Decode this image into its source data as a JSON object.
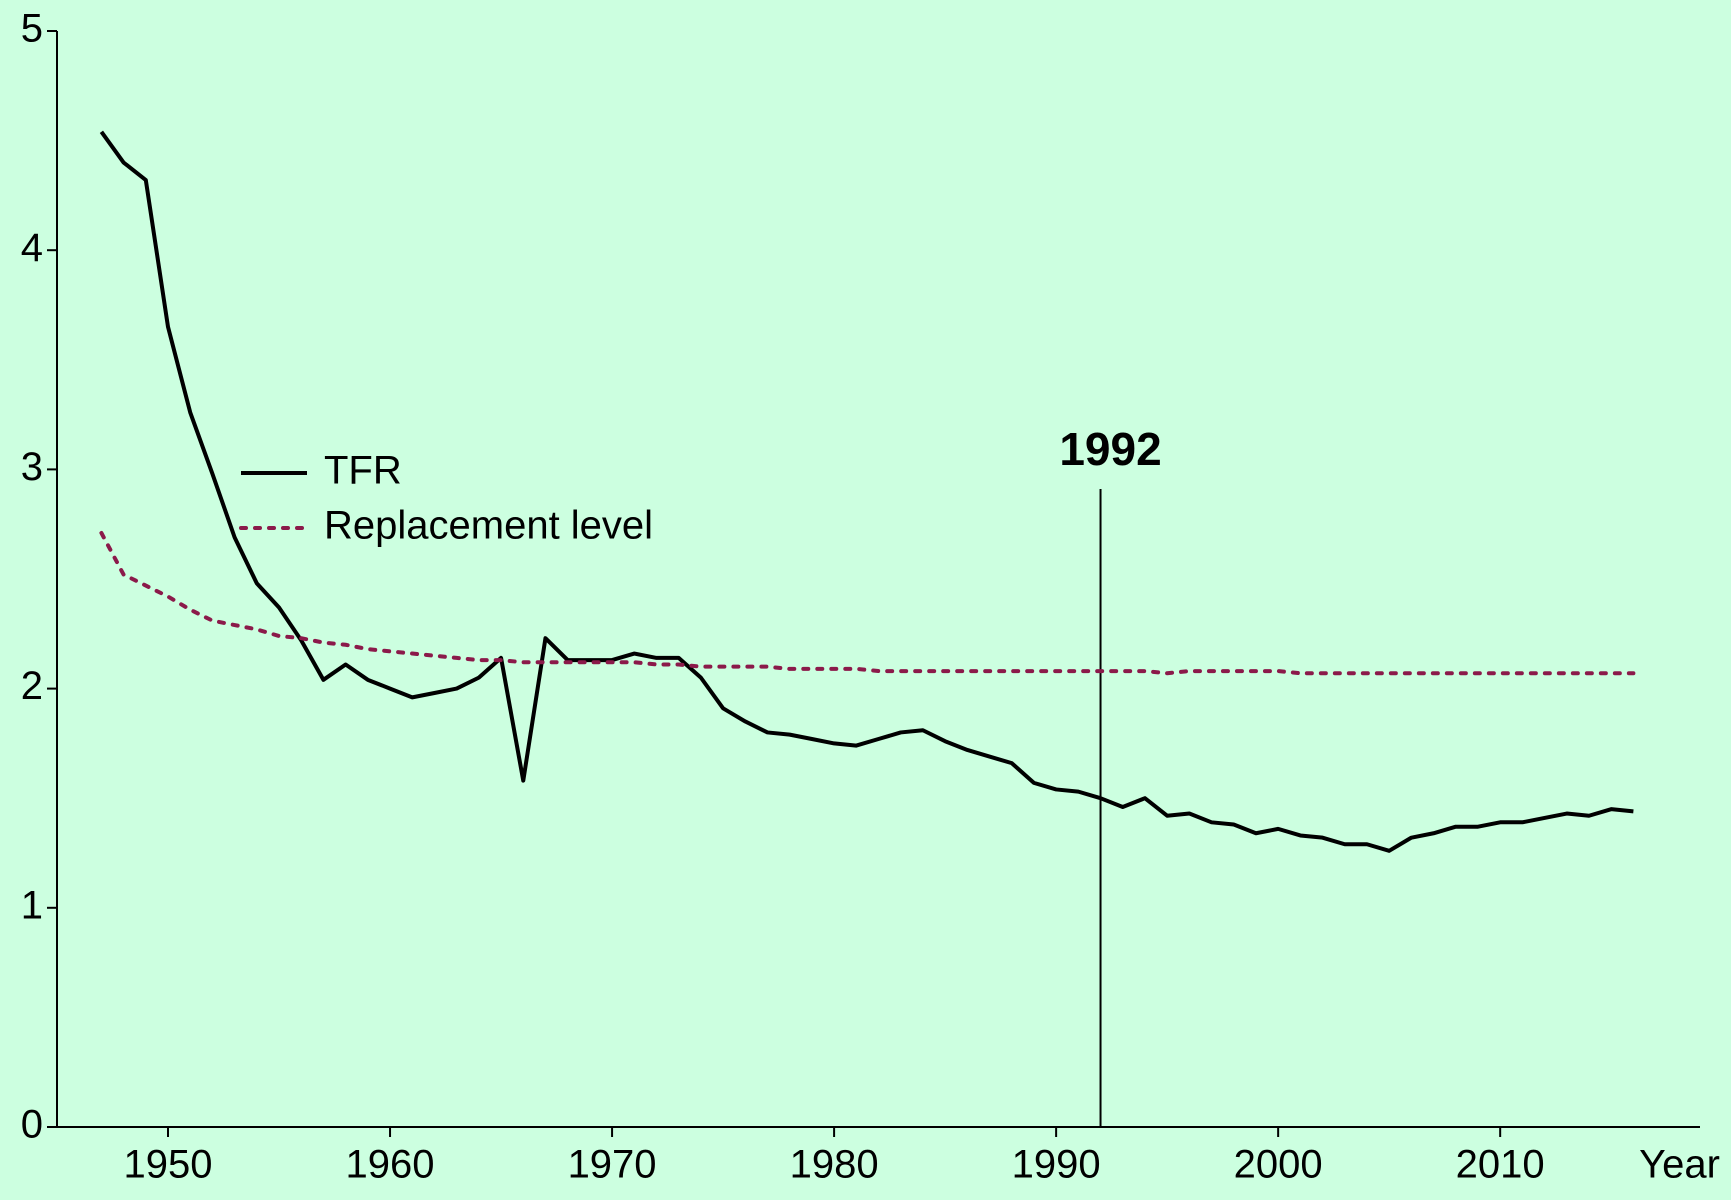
{
  "chart_data": {
    "type": "line",
    "x_label": "Year",
    "x": [
      1947,
      1948,
      1949,
      1950,
      1951,
      1952,
      1953,
      1954,
      1955,
      1956,
      1957,
      1958,
      1959,
      1960,
      1961,
      1962,
      1963,
      1964,
      1965,
      1966,
      1967,
      1968,
      1969,
      1970,
      1971,
      1972,
      1973,
      1974,
      1975,
      1976,
      1977,
      1978,
      1979,
      1980,
      1981,
      1982,
      1983,
      1984,
      1985,
      1986,
      1987,
      1988,
      1989,
      1990,
      1991,
      1992,
      1993,
      1994,
      1995,
      1996,
      1997,
      1998,
      1999,
      2000,
      2001,
      2002,
      2003,
      2004,
      2005,
      2006,
      2007,
      2008,
      2009,
      2010,
      2011,
      2012,
      2013,
      2014,
      2015,
      2016
    ],
    "series": [
      {
        "name": "TFR",
        "color": "#000000",
        "dash": "solid",
        "values": [
          4.54,
          4.4,
          4.32,
          3.65,
          3.26,
          2.98,
          2.69,
          2.48,
          2.37,
          2.22,
          2.04,
          2.11,
          2.04,
          2.0,
          1.96,
          1.98,
          2.0,
          2.05,
          2.14,
          1.58,
          2.23,
          2.13,
          2.13,
          2.13,
          2.16,
          2.14,
          2.14,
          2.05,
          1.91,
          1.85,
          1.8,
          1.79,
          1.77,
          1.75,
          1.74,
          1.77,
          1.8,
          1.81,
          1.76,
          1.72,
          1.69,
          1.66,
          1.57,
          1.54,
          1.53,
          1.5,
          1.46,
          1.5,
          1.42,
          1.43,
          1.39,
          1.38,
          1.34,
          1.36,
          1.33,
          1.32,
          1.29,
          1.29,
          1.26,
          1.32,
          1.34,
          1.37,
          1.37,
          1.39,
          1.39,
          1.41,
          1.43,
          1.42,
          1.45,
          1.44
        ]
      },
      {
        "name": "Replacement level",
        "color": "#8b1a4a",
        "dash": "dotted",
        "values": [
          2.71,
          2.52,
          2.47,
          2.42,
          2.36,
          2.31,
          2.29,
          2.27,
          2.24,
          2.23,
          2.21,
          2.2,
          2.18,
          2.17,
          2.16,
          2.15,
          2.14,
          2.13,
          2.13,
          2.12,
          2.12,
          2.12,
          2.12,
          2.12,
          2.12,
          2.11,
          2.11,
          2.1,
          2.1,
          2.1,
          2.1,
          2.09,
          2.09,
          2.09,
          2.09,
          2.08,
          2.08,
          2.08,
          2.08,
          2.08,
          2.08,
          2.08,
          2.08,
          2.08,
          2.08,
          2.08,
          2.08,
          2.08,
          2.07,
          2.08,
          2.08,
          2.08,
          2.08,
          2.08,
          2.07,
          2.07,
          2.07,
          2.07,
          2.07,
          2.07,
          2.07,
          2.07,
          2.07,
          2.07,
          2.07,
          2.07,
          2.07,
          2.07,
          2.07,
          2.07
        ]
      }
    ],
    "annotations": [
      {
        "x": 1992,
        "text": "1992"
      }
    ],
    "xlim": [
      1945,
      2019
    ],
    "ylim": [
      0,
      5
    ],
    "xticks": [
      1950,
      1960,
      1970,
      1980,
      1990,
      2000,
      2010
    ],
    "yticks": [
      0,
      1,
      2,
      3,
      4,
      5
    ],
    "background": "#ccffe0"
  }
}
